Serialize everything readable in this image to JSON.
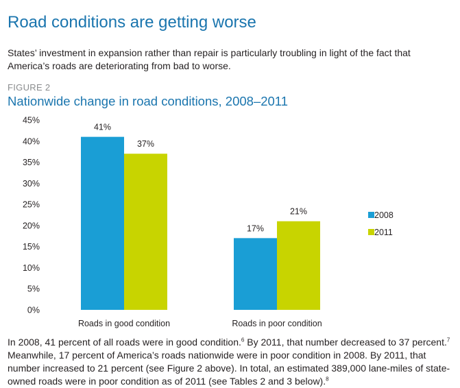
{
  "page": {
    "title": "Road conditions are getting worse",
    "intro": "States’ investment in expansion rather than repair is particularly troubling in light of the fact that America’s roads are deteriorating from bad to worse.",
    "figure_label": "FIGURE 2",
    "figure_title": "Nationwide change in road conditions, 2008–2011",
    "outro": [
      {
        "text": "In 2008, 41 percent of all roads were in good condition."
      },
      {
        "sup": "6"
      },
      {
        "text": " By 2011, that number decreased to 37 percent."
      },
      {
        "sup": "7"
      },
      {
        "text": " Meanwhile, 17 percent of America’s roads nationwide were in poor condition in 2008. By 2011, that number increased to 21 percent (see Figure 2 above). In total, an estimated 389,000 lane-miles of state-owned roads were in poor condition as of 2011 (see Tables 2 and 3 below)."
      },
      {
        "sup": "8"
      }
    ]
  },
  "colors": {
    "title": "#1a75ae",
    "series_2008": "#1a9ed5",
    "series_2011": "#c8d400",
    "axis_text": "#231f20",
    "figure_label": "#8a8c8e"
  },
  "chart_data": {
    "type": "bar",
    "title": "Nationwide change in road conditions, 2008–2011",
    "categories": [
      "Roads in good condition",
      "Roads in poor condition"
    ],
    "series": [
      {
        "name": "2008",
        "values": [
          41,
          17
        ],
        "labels": [
          "41%",
          "17%"
        ],
        "color": "#1a9ed5"
      },
      {
        "name": "2011",
        "values": [
          37,
          21
        ],
        "labels": [
          "37%",
          "21%"
        ],
        "color": "#c8d400"
      }
    ],
    "ylim": [
      0,
      45
    ],
    "yticks": [
      0,
      5,
      10,
      15,
      20,
      25,
      30,
      35,
      40,
      45
    ],
    "ytick_labels": [
      "0%",
      "5%",
      "10%",
      "15%",
      "20%",
      "25%",
      "30%",
      "35%",
      "40%",
      "45%"
    ],
    "xlabel": "",
    "ylabel": "",
    "grid": false,
    "legend": "right"
  }
}
